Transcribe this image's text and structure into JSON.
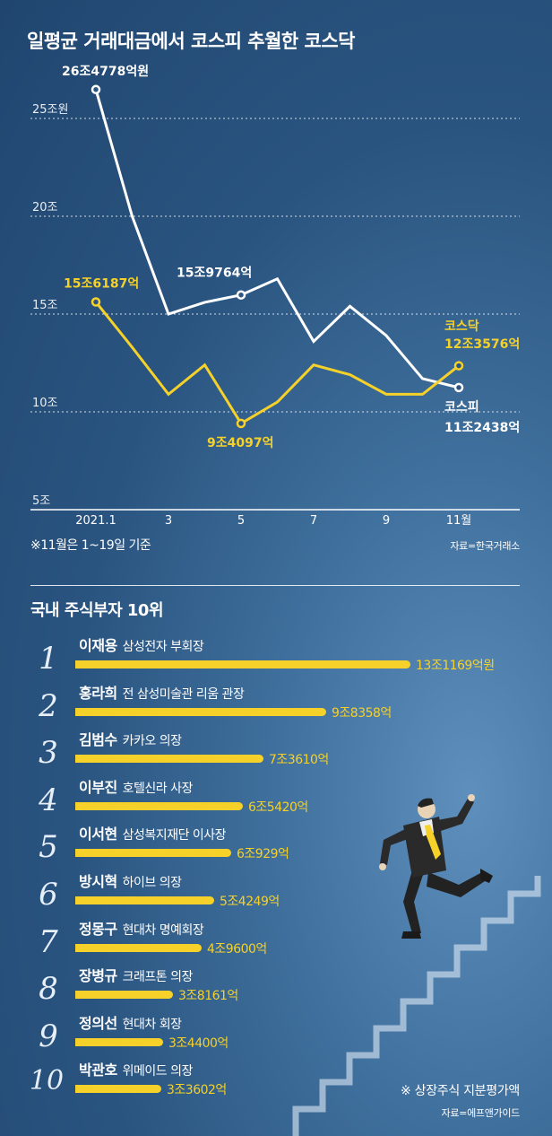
{
  "title": "일평균 거래대금에서 코스피 추월한 코스닥",
  "note": "※11월은 1~19일 기준",
  "source_chart": "자료=한국거래소",
  "chart_data": {
    "type": "line",
    "title": "일평균 거래대금에서 코스피 추월한 코스닥",
    "x": [
      "2021.1",
      "2",
      "3",
      "4",
      "5",
      "6",
      "7",
      "8",
      "9",
      "10",
      "11"
    ],
    "x_tick_labels": [
      "2021.1",
      "3",
      "5",
      "7",
      "9",
      "11월"
    ],
    "y_unit": "조원",
    "ylim": [
      5,
      26.5
    ],
    "y_ticks": [
      5,
      10,
      15,
      20,
      25
    ],
    "y_tick_labels": [
      "5조",
      "10조",
      "15조",
      "20조",
      "25조원"
    ],
    "grid": true,
    "colors": {
      "kospi": "#ffffff",
      "kosdaq": "#f5d12a"
    },
    "series": [
      {
        "name": "코스피",
        "values": [
          26.4778,
          20.0,
          15.0,
          15.6,
          15.9764,
          16.8,
          13.6,
          15.4,
          13.9,
          11.7,
          11.2438
        ]
      },
      {
        "name": "코스닥",
        "values": [
          15.6187,
          13.3,
          10.9,
          12.4,
          9.4097,
          10.5,
          12.4,
          11.9,
          10.9,
          10.9,
          12.3576
        ]
      }
    ],
    "annotations": [
      {
        "series": 0,
        "index": 0,
        "text": "26조4778억원"
      },
      {
        "series": 0,
        "index": 4,
        "text": "15조9764억"
      },
      {
        "series": 1,
        "index": 0,
        "text": "15조6187억"
      },
      {
        "series": 1,
        "index": 4,
        "text": "9조4097억"
      }
    ],
    "end_labels": {
      "kosdaq_name": "코스닥",
      "kosdaq_value": "12조3576억",
      "kospi_name": "코스피",
      "kospi_value": "11조2438억"
    }
  },
  "ranking": {
    "title": "국내 주식부자 10위",
    "unit_max": 13.1169,
    "people": [
      {
        "rank": "1",
        "name": "이재용",
        "role": "삼성전자 부회장",
        "amount": "13조1169억원",
        "value": 13.1169
      },
      {
        "rank": "2",
        "name": "홍라희",
        "role": "전 삼성미술관 리움 관장",
        "amount": "9조8358억",
        "value": 9.8358
      },
      {
        "rank": "3",
        "name": "김범수",
        "role": "카카오 의장",
        "amount": "7조3610억",
        "value": 7.361
      },
      {
        "rank": "4",
        "name": "이부진",
        "role": "호텔신라 사장",
        "amount": "6조5420억",
        "value": 6.542
      },
      {
        "rank": "5",
        "name": "이서현",
        "role": "삼성복지재단 이사장",
        "amount": "6조929억",
        "value": 6.0929
      },
      {
        "rank": "6",
        "name": "방시혁",
        "role": "하이브 의장",
        "amount": "5조4249억",
        "value": 5.4249
      },
      {
        "rank": "7",
        "name": "정몽구",
        "role": "현대차 명예회장",
        "amount": "4조9600억",
        "value": 4.96
      },
      {
        "rank": "8",
        "name": "장병규",
        "role": "크래프톤 의장",
        "amount": "3조8161억",
        "value": 3.8161
      },
      {
        "rank": "9",
        "name": "정의선",
        "role": "현대차 회장",
        "amount": "3조4400억",
        "value": 3.44
      },
      {
        "rank": "10",
        "name": "박관호",
        "role": "위메이드 의장",
        "amount": "3조3602억",
        "value": 3.3602
      }
    ],
    "footnote": "※ 상장주식 지분평가액",
    "source": "자료=에프앤가이드"
  }
}
